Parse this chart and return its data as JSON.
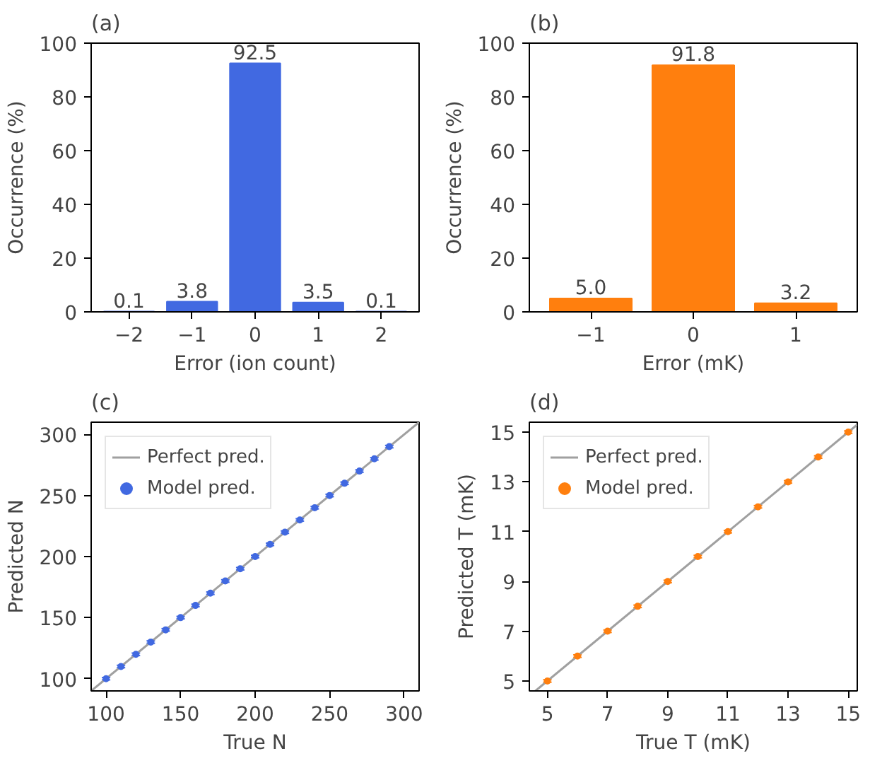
{
  "chart_data": [
    {
      "type": "bar",
      "title": "(a)",
      "xlabel": "Error (ion count)",
      "ylabel": "Occurrence (%)",
      "categories": [
        "−2",
        "−1",
        "0",
        "1",
        "2"
      ],
      "values": [
        0.1,
        3.8,
        92.5,
        3.5,
        0.1
      ],
      "value_labels": [
        "0.1",
        "3.8",
        "92.5",
        "3.5",
        "0.1"
      ],
      "color": "#4169e1",
      "ylim": [
        0,
        100
      ],
      "yticks": [
        0,
        20,
        40,
        60,
        80,
        100
      ],
      "grid": false
    },
    {
      "type": "bar",
      "title": "(b)",
      "xlabel": "Error (mK)",
      "ylabel": "Occurrence (%)",
      "categories": [
        "−1",
        "0",
        "1"
      ],
      "values": [
        5.0,
        91.8,
        3.2
      ],
      "value_labels": [
        "5.0",
        "91.8",
        "3.2"
      ],
      "color": "#ff7f0e",
      "ylim": [
        0,
        100
      ],
      "yticks": [
        0,
        20,
        40,
        60,
        80,
        100
      ],
      "grid": false
    },
    {
      "type": "scatter",
      "title": "(c)",
      "xlabel": "True N",
      "ylabel": "Predicted N",
      "xlim": [
        90,
        310
      ],
      "ylim": [
        90,
        310
      ],
      "xticks": [
        100,
        150,
        200,
        250,
        300
      ],
      "yticks": [
        100,
        150,
        200,
        250,
        300
      ],
      "grid": false,
      "legend": "top left",
      "series": [
        {
          "name": "Perfect pred.",
          "type": "line",
          "color": "#a0a0a0",
          "x": [
            90,
            310
          ],
          "values": [
            90,
            310
          ]
        },
        {
          "name": "Model pred.",
          "type": "scatter",
          "marker": "circle",
          "color": "#4169e1",
          "x": [
            100,
            110,
            120,
            130,
            140,
            150,
            160,
            170,
            180,
            190,
            200,
            210,
            220,
            230,
            240,
            250,
            260,
            270,
            280,
            290
          ],
          "values": [
            100,
            110,
            120,
            130,
            140,
            150,
            160,
            170,
            180,
            190,
            200,
            210,
            220,
            230,
            240,
            250,
            260,
            270,
            280,
            290
          ],
          "errors": [
            1,
            1,
            1,
            1,
            1,
            1,
            1,
            1,
            1,
            1,
            1,
            1,
            1,
            1,
            1,
            1,
            1,
            1,
            1,
            1
          ]
        }
      ]
    },
    {
      "type": "scatter",
      "title": "(d)",
      "xlabel": "True T (mK)",
      "ylabel": "Predicted T (mK)",
      "xlim": [
        4.4,
        15.3
      ],
      "ylim": [
        4.6,
        15.4
      ],
      "xticks": [
        5,
        7,
        9,
        11,
        13,
        15
      ],
      "yticks": [
        5,
        7,
        9,
        11,
        13,
        15
      ],
      "grid": false,
      "legend": "top left",
      "series": [
        {
          "name": "Perfect pred.",
          "type": "line",
          "color": "#a0a0a0",
          "x": [
            4.6,
            15.3
          ],
          "values": [
            4.6,
            15.3
          ]
        },
        {
          "name": "Model pred.",
          "type": "scatter",
          "marker": "circle",
          "color": "#ff7f0e",
          "x": [
            5,
            6,
            7,
            8,
            9,
            10,
            11,
            12,
            13,
            14,
            15
          ],
          "values": [
            5,
            6,
            7,
            8,
            9,
            10,
            11,
            12,
            13,
            14,
            15
          ],
          "errors": [
            0.05,
            0.05,
            0.05,
            0.05,
            0.05,
            0.05,
            0.05,
            0.05,
            0.05,
            0.05,
            0.05
          ]
        }
      ]
    }
  ]
}
